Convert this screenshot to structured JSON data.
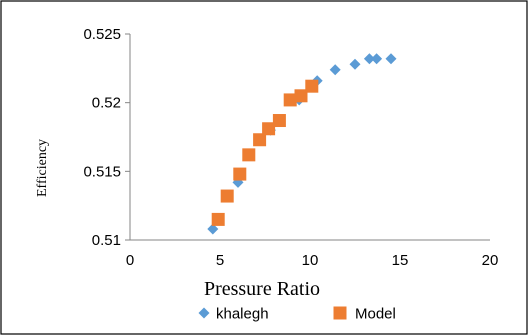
{
  "chart_data": {
    "type": "scatter",
    "xlabel": "Pressure Ratio",
    "ylabel": "Efficiency",
    "xlim": [
      0,
      20
    ],
    "ylim": [
      0.51,
      0.525
    ],
    "x_ticks": [
      "0",
      "5",
      "10",
      "15",
      "20"
    ],
    "y_ticks": [
      "0.51",
      "0.515",
      "0.52",
      "0.525"
    ],
    "grid": false,
    "legend_position": "bottom",
    "series": [
      {
        "name": "khalegh",
        "marker": "diamond",
        "color": "#5B9BD5",
        "x": [
          4.6,
          6.0,
          7.8,
          9.4,
          10.4,
          11.4,
          12.5,
          13.3,
          13.7,
          14.5
        ],
        "y": [
          0.5108,
          0.5142,
          0.518,
          0.5202,
          0.5216,
          0.5224,
          0.5228,
          0.5232,
          0.5232,
          0.5232
        ]
      },
      {
        "name": "Model",
        "marker": "square",
        "color": "#ED7D31",
        "x": [
          4.9,
          5.4,
          6.1,
          6.6,
          7.2,
          7.7,
          8.3,
          8.9,
          9.5,
          10.1
        ],
        "y": [
          0.5115,
          0.5132,
          0.5148,
          0.5162,
          0.5173,
          0.5181,
          0.5187,
          0.5202,
          0.5205,
          0.5212
        ]
      }
    ]
  }
}
